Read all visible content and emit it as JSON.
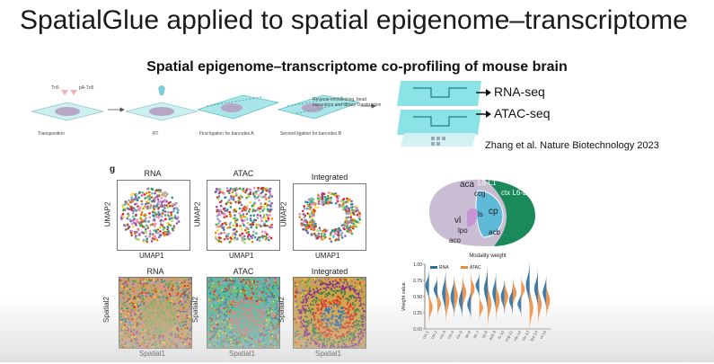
{
  "slide": {
    "title": "SpatialGlue applied to spatial epigenome–transcriptome",
    "subtitle": "Spatial epigenome–transcriptome co-profiling of mouse brain"
  },
  "workflow": {
    "reagents": [
      "Tn5",
      "pA-Tn5"
    ],
    "steps": [
      "Transposition",
      "RT",
      "First ligation for barcodes A",
      "Second ligation for barcodes B",
      "Reverse crosslinking, bead separation and library construction"
    ]
  },
  "device": {
    "outputs": [
      "RNA-seq",
      "ATAC-seq"
    ],
    "citation": "Zhang et al. Nature Biotechnology 2023"
  },
  "figure_g": {
    "panel_letter": "g",
    "umap_row": {
      "titles": [
        "RNA",
        "ATAC",
        "Integrated"
      ],
      "xlabel": "UMAP1",
      "ylabel": "UMAP2"
    },
    "spatial_row": {
      "titles": [
        "RNA",
        "ATAC",
        "Integrated"
      ],
      "xlabel": "Spatial1",
      "ylabel": "Spatial2"
    }
  },
  "brain_annotation": {
    "labels": [
      "aca",
      "L6-L1",
      "ccg",
      "ctx L6-L1",
      "cp",
      "ls",
      "vl",
      "lpo",
      "aco",
      "acb"
    ]
  },
  "chart_data": {
    "type": "violin",
    "title": "Modality weight",
    "ylabel": "Weight value",
    "xlabel": "",
    "ylim": [
      0,
      1.0
    ],
    "yticks": [
      0.0,
      0.25,
      0.5,
      0.75,
      1.0
    ],
    "legend_position": "top-left",
    "series": [
      {
        "name": "RNA",
        "color": "#2c6e9e"
      },
      {
        "name": "ATAC",
        "color": "#ef8a3a"
      }
    ],
    "categories": [
      "ctx-1",
      "ctx-2",
      "ctx-3",
      "ctx-4",
      "ctx-5",
      "str-6",
      "str-7",
      "cp-8",
      "acb-9",
      "ls-10",
      "ccg-11",
      "ctx-12",
      "ctx-13",
      "lpo-14",
      "vl-15"
    ]
  },
  "colors": {
    "device_teal": "#3fd0d4",
    "brain_green": "#1b8a5a",
    "brain_tissue": "#b7a7c6"
  }
}
